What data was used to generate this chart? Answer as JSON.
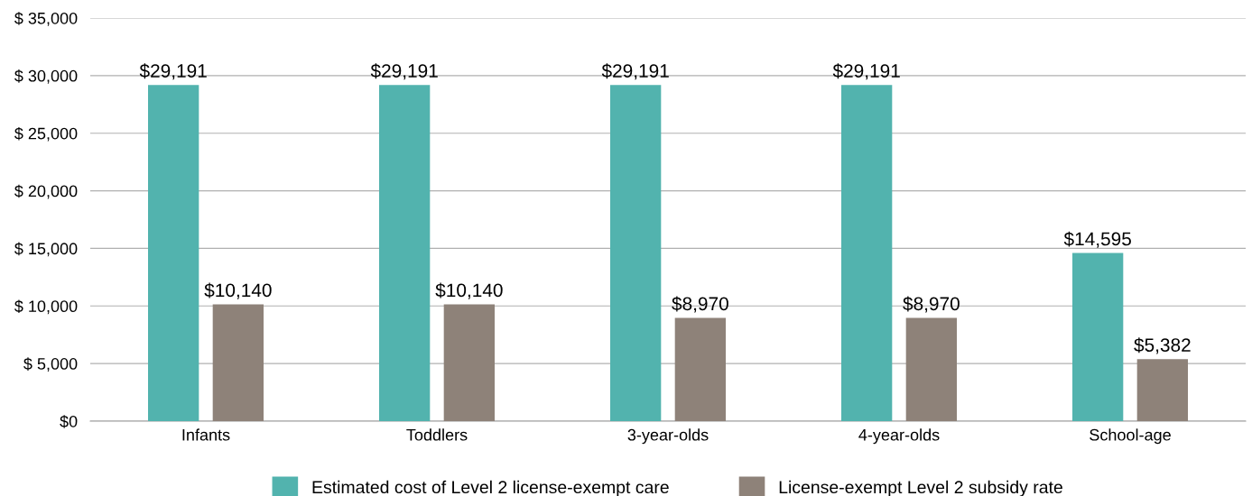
{
  "chart_data": {
    "type": "bar",
    "categories": [
      "Infants",
      "Toddlers",
      "3-year-olds",
      "4-year-olds",
      "School-age"
    ],
    "series": [
      {
        "name": "Estimated cost of Level 2 license-exempt care",
        "color": "#52b3ae",
        "values": [
          29191,
          29191,
          29191,
          29191,
          14595
        ],
        "value_labels": [
          "$29,191",
          "$29,191",
          "$29,191",
          "$29,191",
          "$14,595"
        ]
      },
      {
        "name": "License-exempt Level 2 subsidy rate",
        "color": "#8e8279",
        "values": [
          10140,
          10140,
          8970,
          8970,
          5382
        ],
        "value_labels": [
          "$10,140",
          "$10,140",
          "$8,970",
          "$8,970",
          "$5,382"
        ]
      }
    ],
    "ylim": [
      0,
      35000
    ],
    "yticks": [
      {
        "value": 0,
        "label": "$0"
      },
      {
        "value": 5000,
        "label": "$ 5,000"
      },
      {
        "value": 10000,
        "label": "$ 10,000"
      },
      {
        "value": 15000,
        "label": "$ 15,000"
      },
      {
        "value": 20000,
        "label": "$ 20,000"
      },
      {
        "value": 25000,
        "label": "$ 25,000"
      },
      {
        "value": 30000,
        "label": "$ 30,000"
      },
      {
        "value": 35000,
        "label": "$ 35,000"
      }
    ],
    "grid": "y",
    "legend": "bottom"
  }
}
